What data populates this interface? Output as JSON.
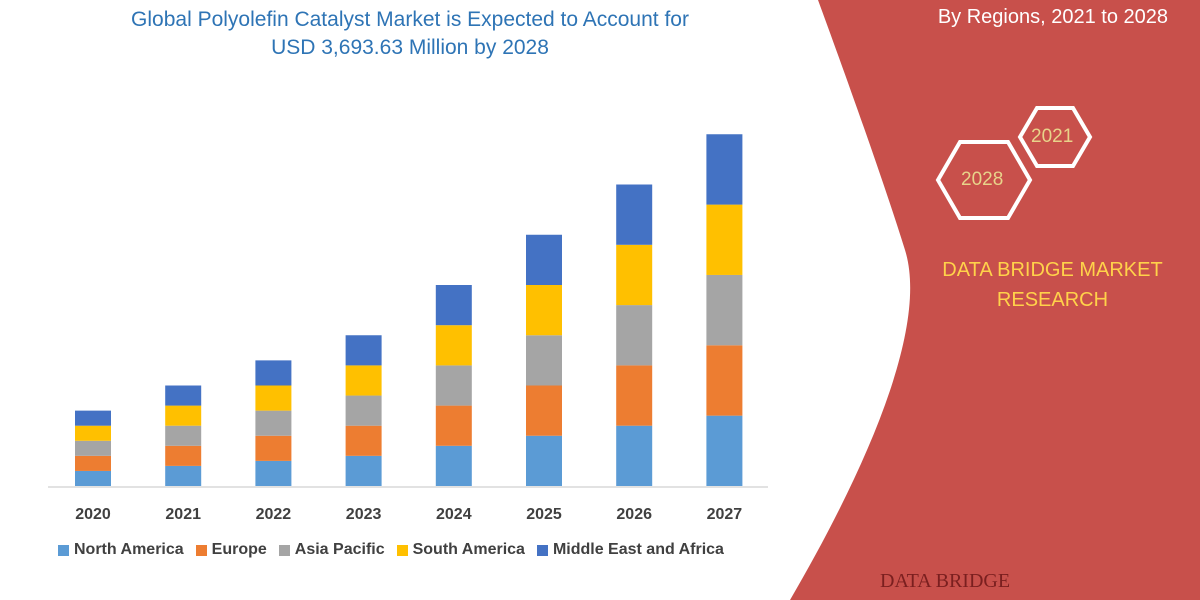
{
  "title_line1": "Global Polyolefin Catalyst Market is Expected to Account for",
  "title_line2": "USD 3,693.63 Million by 2028",
  "region_note": "By Regions, 2021 to 2028",
  "hex_labels": [
    "2021",
    "2028"
  ],
  "brand": "DATA BRIDGE MARKET RESEARCH",
  "logo_text": "DATA BRIDGE",
  "colors": {
    "panel": "#c8504b",
    "axis": "#d9d9d9"
  },
  "chart_data": {
    "type": "bar",
    "stacked": true,
    "categories": [
      "2020",
      "2021",
      "2022",
      "2023",
      "2024",
      "2025",
      "2026",
      "2027"
    ],
    "series": [
      {
        "name": "North America",
        "color": "#5b9bd5",
        "values": [
          15,
          20,
          25,
          30,
          40,
          50,
          60,
          70
        ]
      },
      {
        "name": "Europe",
        "color": "#ed7d31",
        "values": [
          15,
          20,
          25,
          30,
          40,
          50,
          60,
          70
        ]
      },
      {
        "name": "Asia Pacific",
        "color": "#a5a5a5",
        "values": [
          15,
          20,
          25,
          30,
          40,
          50,
          60,
          70
        ]
      },
      {
        "name": "South America",
        "color": "#ffc000",
        "values": [
          15,
          20,
          25,
          30,
          40,
          50,
          60,
          70
        ]
      },
      {
        "name": "Middle East and Africa",
        "color": "#4472c4",
        "values": [
          15,
          20,
          25,
          30,
          40,
          50,
          60,
          70
        ]
      }
    ],
    "legend": "bottom",
    "grid": false,
    "y_axis_shown": false
  }
}
